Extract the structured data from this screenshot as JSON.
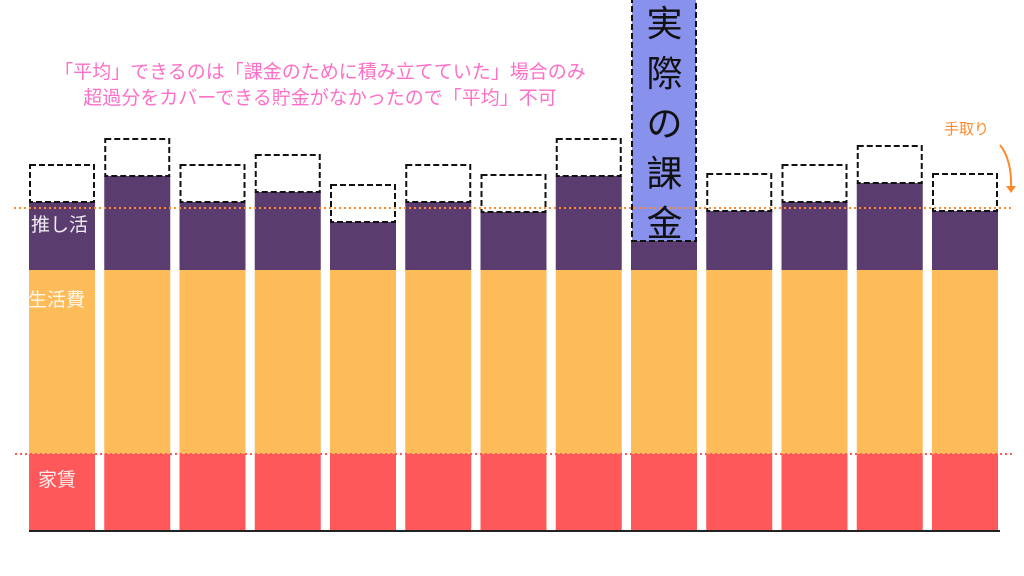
{
  "annotation": {
    "line1": "「平均」できるのは「課金のために積み立てていた」場合のみ",
    "line2": "超過分をカバーできる貯金がなかったので「平均」不可"
  },
  "labels": {
    "oshi": "推し活",
    "living": "生活費",
    "rent": "家賃",
    "take_home": "手取り",
    "actual_spending": [
      "実",
      "際",
      "の",
      "課",
      "金"
    ]
  },
  "chart_data": {
    "type": "bar",
    "stacked": true,
    "units": "relative (unlabeled)",
    "take_home": 323,
    "series": [
      {
        "name": "家賃",
        "color": "#ff585a",
        "values": [
          77,
          77,
          77,
          77,
          77,
          77,
          77,
          77,
          77,
          77,
          77,
          77,
          77
        ]
      },
      {
        "name": "生活費",
        "color": "#fdbb5a",
        "values": [
          184,
          184,
          184,
          184,
          184,
          184,
          184,
          184,
          184,
          184,
          184,
          184,
          184
        ]
      },
      {
        "name": "推し活",
        "color": "#5a3d6e",
        "values": [
          68,
          94,
          68,
          78,
          48,
          68,
          58,
          94,
          29,
          59,
          68,
          87,
          59
        ]
      }
    ],
    "dashed_extra": [
      37,
      37,
      37,
      37,
      37,
      37,
      37,
      37,
      null,
      37,
      37,
      37,
      37
    ],
    "highlight": {
      "index": 8,
      "label": "実際の課金",
      "color": "#8891ec",
      "extends_beyond_top": true
    }
  },
  "colors": {
    "note": "#ff6fc8",
    "take_home_line": "#ff8a2a",
    "rent_line": "#ff585a"
  }
}
